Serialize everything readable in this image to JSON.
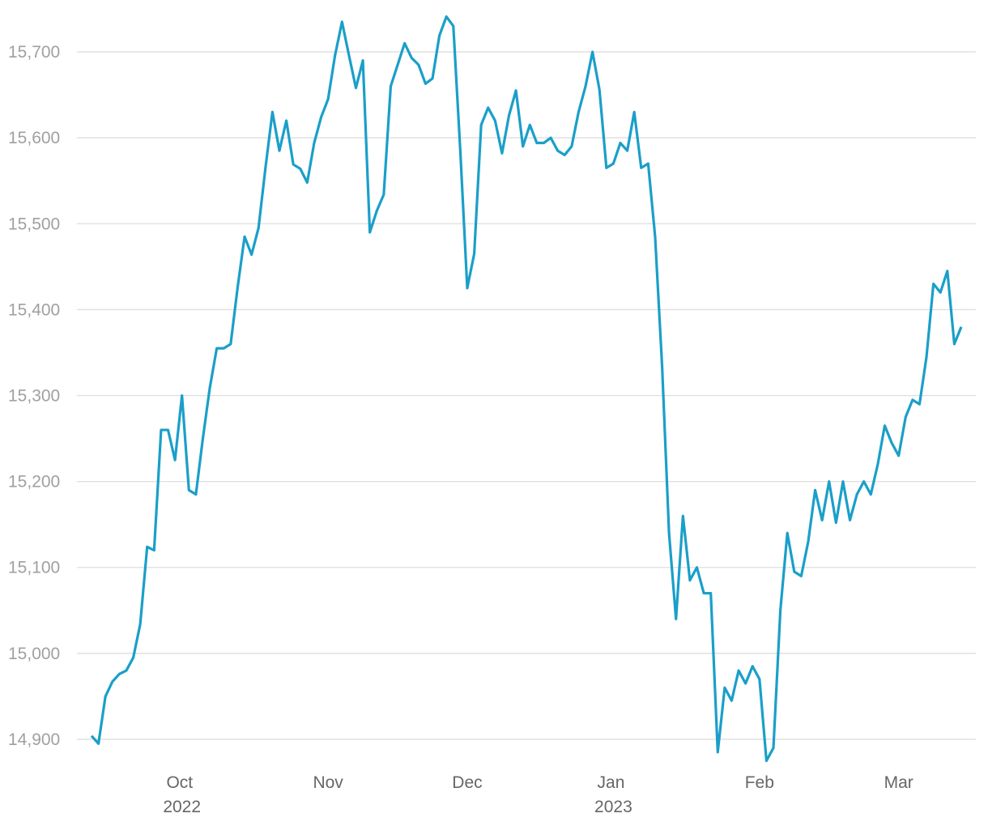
{
  "chart_data": {
    "type": "line",
    "categories": [
      null,
      null,
      null,
      null,
      null,
      null,
      null,
      null,
      null,
      null,
      null,
      null,
      null,
      "Oct 2022",
      null,
      null,
      null,
      null,
      null,
      null,
      null,
      null,
      null,
      null,
      null,
      null,
      null,
      null,
      null,
      null,
      null,
      null,
      null,
      null,
      "Nov",
      null,
      null,
      null,
      null,
      null,
      null,
      null,
      null,
      null,
      null,
      null,
      null,
      null,
      null,
      null,
      null,
      null,
      null,
      null,
      "Dec",
      null,
      null,
      null,
      null,
      null,
      null,
      null,
      null,
      null,
      null,
      null,
      null,
      null,
      null,
      null,
      null,
      null,
      null,
      null,
      null,
      "Jan 2023",
      null,
      null,
      null,
      null,
      null,
      null,
      null,
      null,
      null,
      null,
      null,
      null,
      null,
      null,
      null,
      null,
      null,
      null,
      null,
      null,
      "Feb",
      null,
      null,
      null,
      null,
      null,
      null,
      null,
      null,
      null,
      null,
      null,
      null,
      null,
      null,
      null,
      null,
      null,
      null,
      null,
      "Mar",
      null,
      null,
      null,
      null,
      null,
      null,
      null,
      null,
      null
    ],
    "values": [
      14904,
      14895,
      14950,
      14967,
      14976,
      14980,
      14995,
      15034,
      15124,
      15120,
      15260,
      15260,
      15225,
      15300,
      15190,
      15185,
      15250,
      15309,
      15355,
      15355,
      15360,
      15426,
      15485,
      15464,
      15495,
      15565,
      15630,
      15585,
      15620,
      15569,
      15564,
      15548,
      15594,
      15624,
      15645,
      15696,
      15735,
      15696,
      15658,
      15690,
      15490,
      15515,
      15534,
      15660,
      15685,
      15710,
      15693,
      15685,
      15663,
      15669,
      15719,
      15741,
      15730,
      15585,
      15425,
      15465,
      15615,
      15635,
      15620,
      15582,
      15626,
      15655,
      15590,
      15615,
      15594,
      15594,
      15600,
      15585,
      15580,
      15590,
      15630,
      15660,
      15700,
      15656,
      15565,
      15570,
      15594,
      15585,
      15630,
      15565,
      15570,
      15485,
      15335,
      15140,
      15040,
      15160,
      15085,
      15100,
      15070,
      15070,
      14885,
      14960,
      14945,
      14980,
      14965,
      14985,
      14970,
      14875,
      14890,
      15050,
      15140,
      15095,
      15090,
      15130,
      15190,
      15155,
      15200,
      15152,
      15200,
      15155,
      15185,
      15200,
      15185,
      15220,
      15265,
      15245,
      15230,
      15275,
      15295,
      15290,
      15345,
      15430,
      15420,
      15445,
      15360,
      15380
    ],
    "color": "#1a9fc9",
    "ylim": [
      14850,
      15750
    ],
    "yticks": [
      {
        "value": 14900,
        "label": "14,900"
      },
      {
        "value": 15000,
        "label": "15,000"
      },
      {
        "value": 15100,
        "label": "15,100"
      },
      {
        "value": 15200,
        "label": "15,200"
      },
      {
        "value": 15300,
        "label": "15,300"
      },
      {
        "value": 15400,
        "label": "15,400"
      },
      {
        "value": 15500,
        "label": "15,500"
      },
      {
        "value": 15600,
        "label": "15,600"
      },
      {
        "value": 15700,
        "label": "15,700"
      }
    ],
    "grid": true
  }
}
